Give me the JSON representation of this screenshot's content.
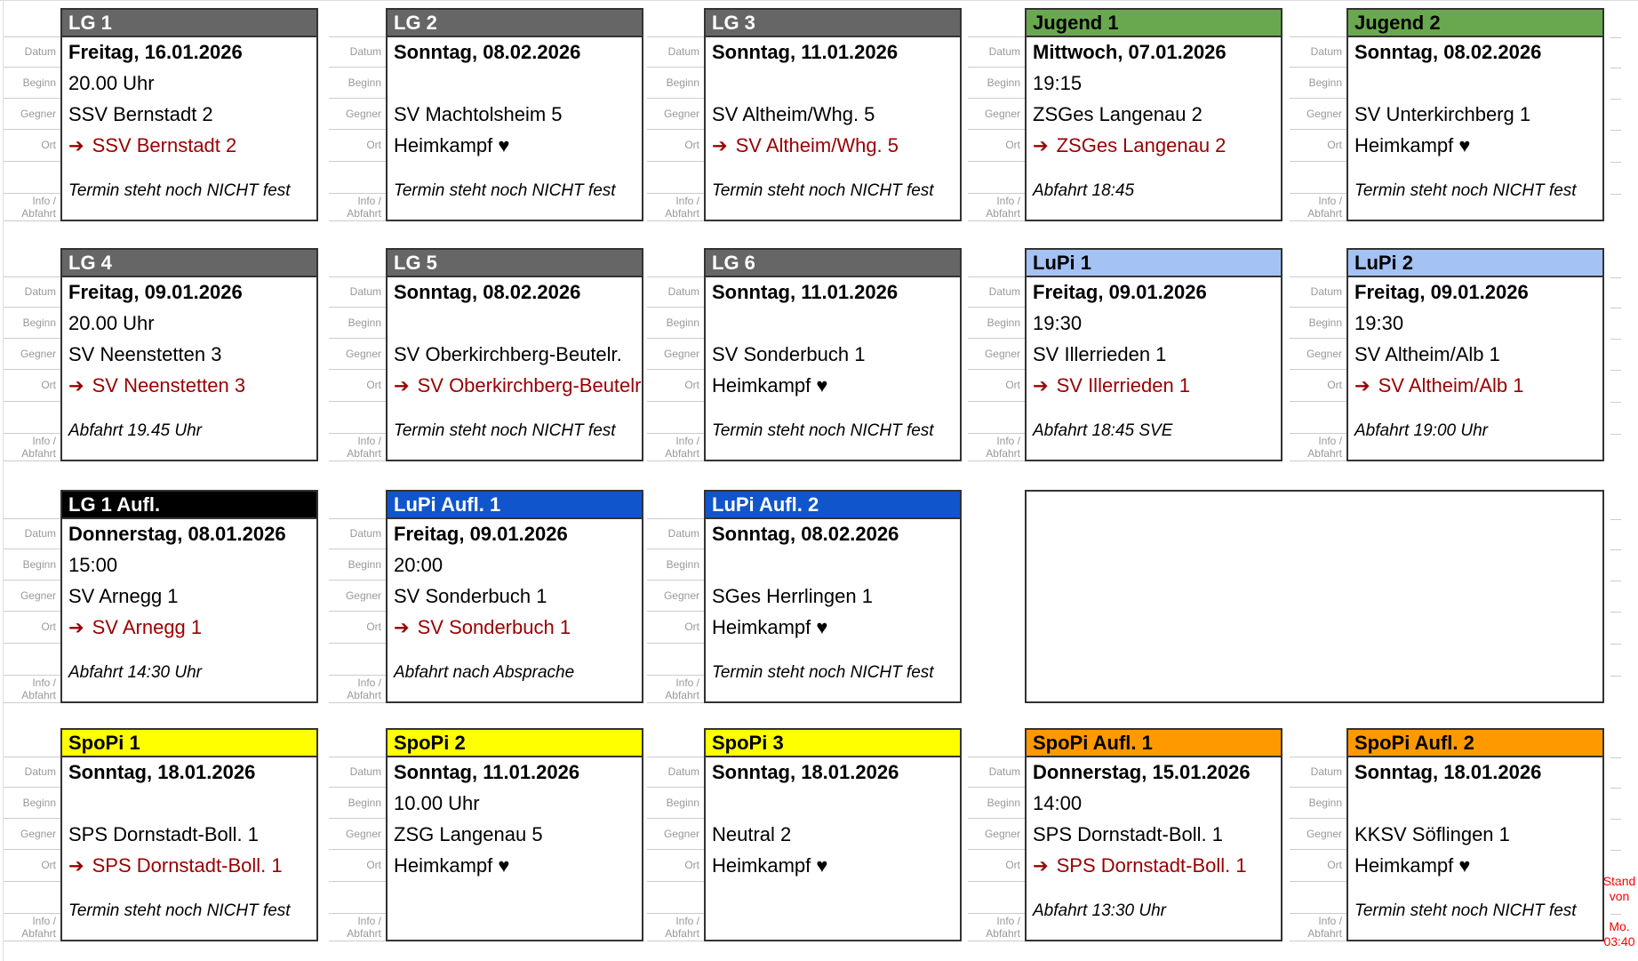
{
  "labels": {
    "datum": "Datum",
    "beginn": "Beginn",
    "gegner": "Gegner",
    "ort": "Ort",
    "info_line1": "Info /",
    "info_line2": "Abfahrt"
  },
  "icons": {
    "away_arrow": "➔",
    "home_heart": "♥"
  },
  "colors": {
    "header_gray": "#666666",
    "header_green": "#6aa84f",
    "header_lightblue": "#a4c2f4",
    "header_black": "#000000",
    "header_blue": "#1155cc",
    "header_yellow": "#ffff00",
    "header_orange": "#ff9900",
    "away_red": "#990000",
    "note_red": "#ff0000",
    "label_gray": "#999999"
  },
  "stand_note": {
    "l1": "Stand",
    "l2": "von",
    "l3": "Mo.",
    "l4": "03:40"
  },
  "cards": [
    {
      "id": "lg1",
      "row": 1,
      "col": 1,
      "title": "LG 1",
      "bg": "#666666",
      "fg": "#ffffff",
      "datum": "Freitag, 16.01.2026",
      "beginn": "20.00 Uhr",
      "gegner": "SSV Bernstadt 2",
      "ort_type": "away",
      "ort": "SSV Bernstadt 2",
      "info": "Termin steht noch NICHT fest"
    },
    {
      "id": "lg2",
      "row": 1,
      "col": 2,
      "title": "LG 2",
      "bg": "#666666",
      "fg": "#ffffff",
      "datum": "Sonntag, 08.02.2026",
      "beginn": "",
      "gegner": "SV Machtolsheim 5",
      "ort_type": "home",
      "ort": "Heimkampf ♥",
      "info": "Termin steht noch NICHT fest"
    },
    {
      "id": "lg3",
      "row": 1,
      "col": 3,
      "title": "LG 3",
      "bg": "#666666",
      "fg": "#ffffff",
      "datum": "Sonntag, 11.01.2026",
      "beginn": "",
      "gegner": "SV Altheim/Whg. 5",
      "ort_type": "away",
      "ort": "SV Altheim/Whg. 5",
      "info": "Termin steht noch NICHT fest"
    },
    {
      "id": "jugend1",
      "row": 1,
      "col": 4,
      "title": "Jugend 1",
      "bg": "#6aa84f",
      "fg": "#000000",
      "datum": "Mittwoch, 07.01.2026",
      "beginn": "19:15",
      "gegner": "ZSGes Langenau 2",
      "ort_type": "away",
      "ort": "ZSGes Langenau 2",
      "info": "Abfahrt 18:45"
    },
    {
      "id": "jugend2",
      "row": 1,
      "col": 5,
      "title": "Jugend 2",
      "bg": "#6aa84f",
      "fg": "#000000",
      "datum": "Sonntag, 08.02.2026",
      "beginn": "",
      "gegner": "SV Unterkirchberg 1",
      "ort_type": "home",
      "ort": "Heimkampf ♥",
      "info": "Termin steht noch NICHT fest"
    },
    {
      "id": "lg4",
      "row": 2,
      "col": 1,
      "title": "LG 4",
      "bg": "#666666",
      "fg": "#ffffff",
      "datum": "Freitag, 09.01.2026",
      "beginn": "20.00 Uhr",
      "gegner": "SV Neenstetten 3",
      "ort_type": "away",
      "ort": "SV Neenstetten 3",
      "info": "Abfahrt 19.45 Uhr"
    },
    {
      "id": "lg5",
      "row": 2,
      "col": 2,
      "title": "LG 5",
      "bg": "#666666",
      "fg": "#ffffff",
      "datum": "Sonntag, 08.02.2026",
      "beginn": "",
      "gegner": "SV Oberkirchberg-Beutelr.",
      "ort_type": "away",
      "ort": "SV Oberkirchberg-Beutelr.",
      "info": "Termin steht noch NICHT fest"
    },
    {
      "id": "lg6",
      "row": 2,
      "col": 3,
      "title": "LG 6",
      "bg": "#666666",
      "fg": "#ffffff",
      "datum": "Sonntag, 11.01.2026",
      "beginn": "",
      "gegner": "SV Sonderbuch 1",
      "ort_type": "home",
      "ort": "Heimkampf ♥",
      "info": "Termin steht noch NICHT fest"
    },
    {
      "id": "lupi1",
      "row": 2,
      "col": 4,
      "title": "LuPi 1",
      "bg": "#a4c2f4",
      "fg": "#000000",
      "datum": "Freitag, 09.01.2026",
      "beginn": "19:30",
      "gegner": "SV Illerrieden 1",
      "ort_type": "away",
      "ort": "SV Illerrieden 1",
      "info": "Abfahrt 18:45 SVE"
    },
    {
      "id": "lupi2",
      "row": 2,
      "col": 5,
      "title": "LuPi 2",
      "bg": "#a4c2f4",
      "fg": "#000000",
      "datum": "Freitag, 09.01.2026",
      "beginn": "19:30",
      "gegner": "SV Altheim/Alb 1",
      "ort_type": "away",
      "ort": "SV Altheim/Alb 1",
      "info": "Abfahrt 19:00 Uhr"
    },
    {
      "id": "lg1aufl",
      "row": 3,
      "col": 1,
      "title": "LG 1 Aufl.",
      "bg": "#000000",
      "fg": "#ffffff",
      "datum": "Donnerstag, 08.01.2026",
      "beginn": "15:00",
      "gegner": "SV Arnegg 1",
      "ort_type": "away",
      "ort": "SV Arnegg 1",
      "info": "Abfahrt 14:30 Uhr"
    },
    {
      "id": "lupiaufl1",
      "row": 3,
      "col": 2,
      "title": "LuPi Aufl. 1",
      "bg": "#1155cc",
      "fg": "#ffffff",
      "datum": "Freitag, 09.01.2026",
      "beginn": "20:00",
      "gegner": "SV Sonderbuch 1",
      "ort_type": "away",
      "ort": "SV Sonderbuch 1",
      "info": "Abfahrt nach Absprache"
    },
    {
      "id": "lupiaufl2",
      "row": 3,
      "col": 3,
      "title": "LuPi Aufl. 2",
      "bg": "#1155cc",
      "fg": "#ffffff",
      "datum": "Sonntag, 08.02.2026",
      "beginn": "",
      "gegner": "SGes Herrlingen 1",
      "ort_type": "home",
      "ort": "Heimkampf ♥",
      "info": "Termin steht noch NICHT fest"
    },
    {
      "id": "spopi1",
      "row": 4,
      "col": 1,
      "title": "SpoPi 1",
      "bg": "#ffff00",
      "fg": "#000000",
      "datum": "Sonntag, 18.01.2026",
      "beginn": "",
      "gegner": "SPS Dornstadt-Boll. 1",
      "ort_type": "away",
      "ort": "SPS Dornstadt-Boll. 1",
      "info": "Termin steht noch NICHT fest"
    },
    {
      "id": "spopi2",
      "row": 4,
      "col": 2,
      "title": "SpoPi 2",
      "bg": "#ffff00",
      "fg": "#000000",
      "datum": "Sonntag, 11.01.2026",
      "beginn": "10.00 Uhr",
      "gegner": "ZSG Langenau 5",
      "ort_type": "home",
      "ort": "Heimkampf ♥",
      "info": ""
    },
    {
      "id": "spopi3",
      "row": 4,
      "col": 3,
      "title": "SpoPi 3",
      "bg": "#ffff00",
      "fg": "#000000",
      "datum": "Sonntag, 18.01.2026",
      "beginn": "",
      "gegner": "Neutral 2",
      "ort_type": "home",
      "ort": "Heimkampf ♥",
      "info": ""
    },
    {
      "id": "spopiaufl1",
      "row": 4,
      "col": 4,
      "title": "SpoPi Aufl. 1",
      "bg": "#ff9900",
      "fg": "#000000",
      "datum": "Donnerstag, 15.01.2026",
      "beginn": "14:00",
      "gegner": "SPS Dornstadt-Boll. 1",
      "ort_type": "away",
      "ort": "SPS Dornstadt-Boll. 1",
      "info": "Abfahrt 13:30 Uhr"
    },
    {
      "id": "spopiaufl2",
      "row": 4,
      "col": 5,
      "title": "SpoPi Aufl. 2",
      "bg": "#ff9900",
      "fg": "#000000",
      "datum": "Sonntag, 18.01.2026",
      "beginn": "",
      "gegner": "KKSV Söflingen 1",
      "ort_type": "home",
      "ort": "Heimkampf ♥",
      "info": "Termin steht noch NICHT fest"
    }
  ],
  "empty_slot": {
    "row": 3,
    "col_start": 4,
    "col_span": 2
  }
}
